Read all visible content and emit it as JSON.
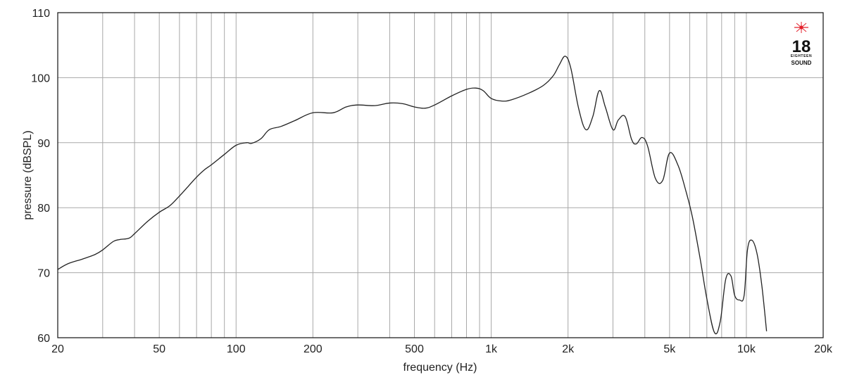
{
  "chart_data": {
    "type": "line",
    "xscale": "log",
    "xlim": [
      20,
      20000
    ],
    "ylim": [
      60,
      110
    ],
    "xlabel": "frequency (Hz)",
    "ylabel": "pressure (dBSPL)",
    "grid": true,
    "x_major_ticks": [
      20,
      50,
      100,
      200,
      500,
      1000,
      2000,
      5000,
      10000,
      20000
    ],
    "x_tick_labels": [
      "20",
      "50",
      "100",
      "200",
      "500",
      "1k",
      "2k",
      "5k",
      "10k",
      "20k"
    ],
    "x_minor_grid": [
      30,
      40,
      60,
      70,
      80,
      90,
      300,
      400,
      600,
      700,
      800,
      900,
      3000,
      4000,
      6000,
      7000,
      8000,
      9000
    ],
    "y_ticks": [
      60,
      70,
      80,
      90,
      100,
      110
    ],
    "y_tick_labels": [
      "60",
      "70",
      "80",
      "90",
      "100",
      "110"
    ],
    "line_color": "#222222",
    "grid_color": "#a8a8a8",
    "series": [
      {
        "x": [
          20,
          22,
          25,
          28,
          30,
          33,
          35,
          38,
          40,
          45,
          50,
          55,
          60,
          65,
          70,
          75,
          80,
          90,
          100,
          110,
          115,
          125,
          135,
          150,
          170,
          200,
          240,
          270,
          300,
          350,
          400,
          450,
          500,
          550,
          600,
          700,
          800,
          870,
          930,
          1000,
          1100,
          1200,
          1400,
          1600,
          1750,
          1850,
          1950,
          2050,
          2200,
          2350,
          2500,
          2650,
          2800,
          3000,
          3150,
          3350,
          3550,
          3700,
          3900,
          4100,
          4400,
          4700,
          5000,
          5400,
          5800,
          6150,
          6600,
          7000,
          7500,
          7900,
          8300,
          8700,
          9000,
          9400,
          9800,
          10100,
          10500,
          11000,
          11500,
          12000
        ],
        "y": [
          70.5,
          71.4,
          72.1,
          72.8,
          73.5,
          74.8,
          75.1,
          75.3,
          76.0,
          77.9,
          79.3,
          80.3,
          81.8,
          83.3,
          84.7,
          85.8,
          86.6,
          88.2,
          89.6,
          90.0,
          89.9,
          90.6,
          92.0,
          92.5,
          93.4,
          94.6,
          94.6,
          95.5,
          95.8,
          95.7,
          96.1,
          96.0,
          95.5,
          95.3,
          95.8,
          97.2,
          98.2,
          98.4,
          98.0,
          96.8,
          96.4,
          96.6,
          97.6,
          98.8,
          100.3,
          102.0,
          103.3,
          101.5,
          95.3,
          92.0,
          94.0,
          98.0,
          95.5,
          92.0,
          93.5,
          94.0,
          90.5,
          89.8,
          90.8,
          89.5,
          84.5,
          84.2,
          88.4,
          86.5,
          82.5,
          78.5,
          72.0,
          66.0,
          60.8,
          62.5,
          69.0,
          69.5,
          66.5,
          65.8,
          66.5,
          73.5,
          75.0,
          73.0,
          68.0,
          61.0
        ]
      }
    ]
  },
  "logo": {
    "number": "18",
    "small": "EIGHTEEN",
    "word": "SOUND",
    "star_color": "#e3202b"
  }
}
